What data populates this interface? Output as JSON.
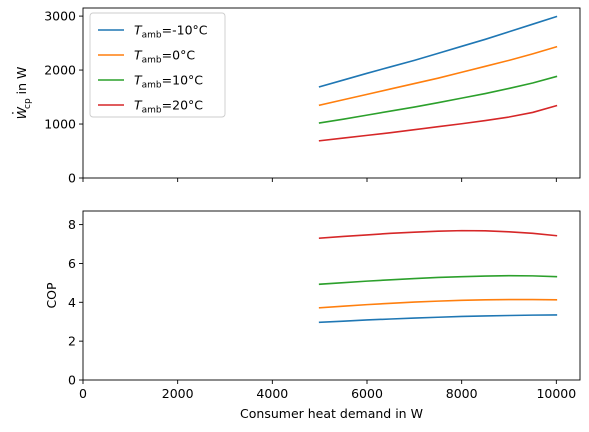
{
  "chart_data": [
    {
      "type": "line",
      "title": "",
      "xlabel": "",
      "ylabel": {
        "base": "W",
        "overdot": "·",
        "subscript": "cp",
        "suffix": " in W"
      },
      "xlim": [
        0,
        10500
      ],
      "ylim": [
        0,
        3150
      ],
      "x_ticks": [
        0,
        2000,
        4000,
        6000,
        8000,
        10000
      ],
      "x_tick_labels_visible": false,
      "y_ticks": [
        0,
        1000,
        2000,
        3000
      ],
      "grid": false,
      "legend": {
        "placement": "top-left",
        "entries": [
          {
            "prefix": "T",
            "subscript": "amb",
            "suffix": "=-10°C",
            "color": "#1f77b4"
          },
          {
            "prefix": "T",
            "subscript": "amb",
            "suffix": "=0°C",
            "color": "#ff7f0e"
          },
          {
            "prefix": "T",
            "subscript": "amb",
            "suffix": "=10°C",
            "color": "#2ca02c"
          },
          {
            "prefix": "T",
            "subscript": "amb",
            "suffix": "=20°C",
            "color": "#d62728"
          }
        ]
      },
      "x": [
        5000,
        5500,
        6000,
        6500,
        7000,
        7500,
        8000,
        8500,
        9000,
        9500,
        10000
      ],
      "series": [
        {
          "color": "#1f77b4",
          "values": [
            1690,
            1815,
            1940,
            2060,
            2180,
            2310,
            2440,
            2570,
            2710,
            2850,
            2990
          ]
        },
        {
          "color": "#ff7f0e",
          "values": [
            1350,
            1450,
            1550,
            1650,
            1750,
            1850,
            1960,
            2070,
            2180,
            2300,
            2430
          ]
        },
        {
          "color": "#2ca02c",
          "values": [
            1020,
            1090,
            1165,
            1240,
            1315,
            1395,
            1480,
            1565,
            1660,
            1760,
            1880
          ]
        },
        {
          "color": "#d62728",
          "values": [
            690,
            740,
            790,
            840,
            895,
            950,
            1005,
            1065,
            1130,
            1215,
            1340
          ]
        }
      ]
    },
    {
      "type": "line",
      "title": "",
      "xlabel": "Consumer heat demand in W",
      "ylabel": "COP",
      "xlim": [
        0,
        10500
      ],
      "ylim": [
        0,
        8.7
      ],
      "x_ticks": [
        0,
        2000,
        4000,
        6000,
        8000,
        10000
      ],
      "x_tick_labels_visible": true,
      "y_ticks": [
        0,
        2,
        4,
        6,
        8
      ],
      "grid": false,
      "x": [
        5000,
        5500,
        6000,
        6500,
        7000,
        7500,
        8000,
        8500,
        9000,
        9500,
        10000
      ],
      "series": [
        {
          "color": "#1f77b4",
          "values": [
            2.97,
            3.03,
            3.09,
            3.14,
            3.19,
            3.23,
            3.27,
            3.3,
            3.32,
            3.34,
            3.35
          ]
        },
        {
          "color": "#ff7f0e",
          "values": [
            3.72,
            3.8,
            3.88,
            3.95,
            4.01,
            4.06,
            4.1,
            4.13,
            4.14,
            4.14,
            4.13
          ]
        },
        {
          "color": "#2ca02c",
          "values": [
            4.93,
            5.01,
            5.09,
            5.16,
            5.22,
            5.28,
            5.32,
            5.35,
            5.37,
            5.36,
            5.32
          ]
        },
        {
          "color": "#d62728",
          "values": [
            7.3,
            7.39,
            7.47,
            7.55,
            7.61,
            7.66,
            7.69,
            7.68,
            7.63,
            7.55,
            7.43
          ]
        }
      ]
    }
  ]
}
